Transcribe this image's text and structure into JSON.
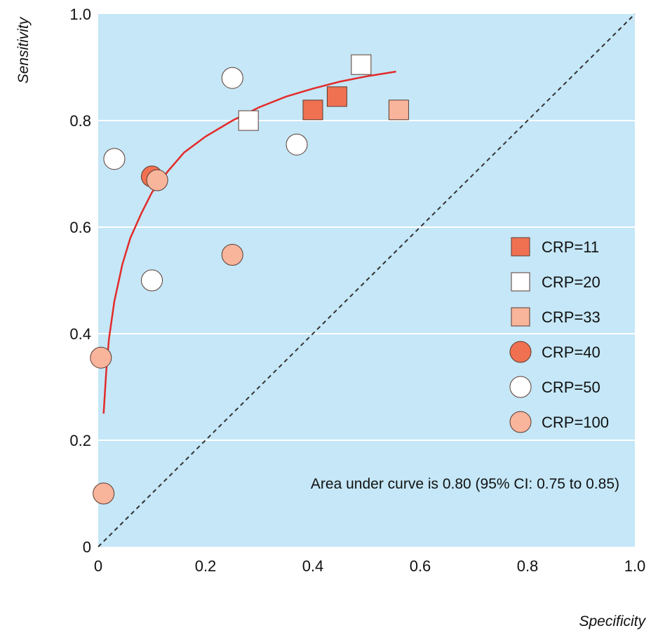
{
  "chart_data": {
    "type": "scatter",
    "xlabel": "Specificity",
    "ylabel": "Sensitivity",
    "xlim": [
      0,
      1.0
    ],
    "ylim": [
      0,
      1.0
    ],
    "x_ticks": [
      "0",
      "0.2",
      "0.4",
      "0.6",
      "0.8",
      "1.0"
    ],
    "y_ticks": [
      "0",
      "0.2",
      "0.4",
      "0.6",
      "0.8",
      "1.0"
    ],
    "x_tick_values": [
      0,
      0.2,
      0.4,
      0.6,
      0.8,
      1.0
    ],
    "y_tick_values": [
      0,
      0.2,
      0.4,
      0.6,
      0.8,
      1.0
    ],
    "grid": "horizontal",
    "legend_position": "right",
    "annotation": "Area under curve is 0.80 (95% CI: 0.75 to 0.85)",
    "background_color": "#c5e7f7",
    "curve_color": "#e32b2b",
    "diagonal_color": "#333333",
    "series": [
      {
        "name": "CRP=11",
        "marker": "square",
        "fill": "#f07152",
        "points": [
          [
            0.4,
            0.82
          ],
          [
            0.445,
            0.845
          ]
        ]
      },
      {
        "name": "CRP=20",
        "marker": "square",
        "fill": "#ffffff",
        "points": [
          [
            0.28,
            0.8
          ],
          [
            0.49,
            0.905
          ]
        ]
      },
      {
        "name": "CRP=33",
        "marker": "square",
        "fill": "#f9b49c",
        "points": [
          [
            0.56,
            0.82
          ]
        ]
      },
      {
        "name": "CRP=40",
        "marker": "circle",
        "fill": "#f07152",
        "points": [
          [
            0.1,
            0.695
          ]
        ]
      },
      {
        "name": "CRP=50",
        "marker": "circle",
        "fill": "#ffffff",
        "points": [
          [
            0.03,
            0.728
          ],
          [
            0.25,
            0.88
          ],
          [
            0.37,
            0.755
          ],
          [
            0.1,
            0.5
          ]
        ]
      },
      {
        "name": "CRP=100",
        "marker": "circle",
        "fill": "#f9b49c",
        "points": [
          [
            0.11,
            0.688
          ],
          [
            0.25,
            0.548
          ],
          [
            0.005,
            0.355
          ],
          [
            0.01,
            0.1
          ]
        ]
      }
    ],
    "fitted_curve": {
      "x": [
        0.01,
        0.015,
        0.02,
        0.03,
        0.045,
        0.06,
        0.08,
        0.1,
        0.13,
        0.16,
        0.2,
        0.25,
        0.3,
        0.35,
        0.4,
        0.45,
        0.5,
        0.555
      ],
      "y": [
        0.25,
        0.33,
        0.39,
        0.46,
        0.53,
        0.58,
        0.625,
        0.665,
        0.705,
        0.74,
        0.77,
        0.8,
        0.825,
        0.845,
        0.86,
        0.873,
        0.883,
        0.892
      ]
    }
  }
}
